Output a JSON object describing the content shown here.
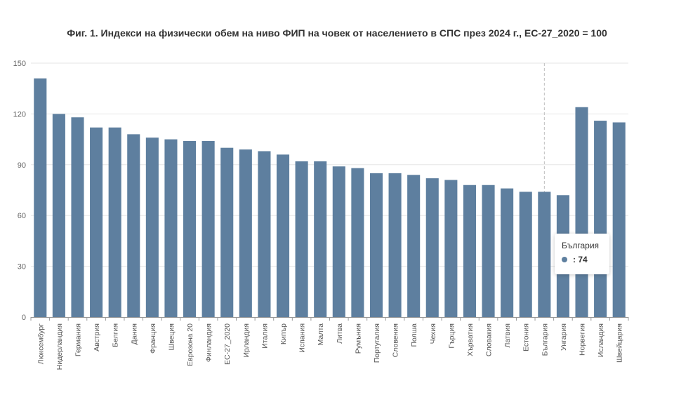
{
  "chart_data": {
    "type": "bar",
    "title": "Фиг. 1. Индекси на физически обем на ниво ФИП на човек от населението в СПС през 2024 г., ЕС-27_2020 = 100",
    "categories": [
      "Люксембург",
      "Нидерландия",
      "Германия",
      "Австрия",
      "Белгия",
      "Дания",
      "Франция",
      "Швеция",
      "Еврозона 20",
      "Финландия",
      "ЕС-27_2020",
      "Ирландия",
      "Италия",
      "Кипър",
      "Испания",
      "Малта",
      "Литва",
      "Румъния",
      "Португалия",
      "Словения",
      "Полша",
      "Чехия",
      "Гърция",
      "Хърватия",
      "Словакия",
      "Латвия",
      "Естония",
      "България",
      "Унгария",
      "Норвегия",
      "Исландия",
      "Швейцария"
    ],
    "values": [
      141,
      120,
      118,
      112,
      112,
      108,
      106,
      105,
      104,
      104,
      100,
      99,
      98,
      96,
      92,
      92,
      89,
      88,
      85,
      85,
      84,
      82,
      81,
      78,
      78,
      76,
      74,
      74,
      72,
      124,
      116,
      115
    ],
    "yticks": [
      "0",
      "30",
      "60",
      "90",
      "120",
      "150"
    ],
    "ylim": [
      0,
      150
    ],
    "grid": true,
    "bar_color": "#5e7f9f",
    "highlight_category": "България"
  },
  "tooltip": {
    "title": "България",
    "value_label": ": 74",
    "dot_color": "#5e7f9f"
  }
}
